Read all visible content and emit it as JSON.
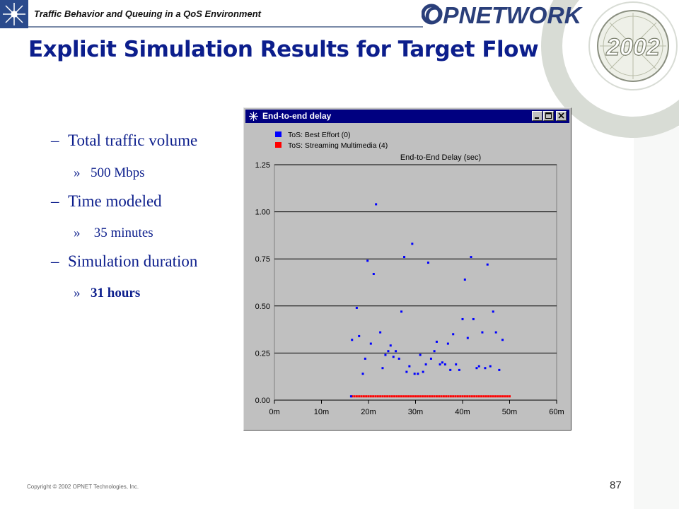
{
  "header": {
    "title": "Traffic Behavior and Queuing in a QoS Environment",
    "brand": "OPNETWORK",
    "badge_year": "2002"
  },
  "slide": {
    "title": "Explicit Simulation Results for Target Flow",
    "bullets": [
      {
        "marker": "–",
        "text": "Total traffic volume",
        "sub": {
          "marker": "»",
          "text": "500 Mbps"
        }
      },
      {
        "marker": "–",
        "text": "Time modeled",
        "sub": {
          "marker": "»",
          "text": " 35 minutes"
        }
      },
      {
        "marker": "–",
        "text": "Simulation duration",
        "sub": {
          "marker": "»",
          "text": "31 hours"
        }
      }
    ]
  },
  "window": {
    "title": "End-to-end delay",
    "buttons": [
      "minimize",
      "maximize",
      "close"
    ]
  },
  "colors": {
    "title_blue": "#0c1e8c",
    "best_effort": "#0000ff",
    "streaming": "#ff0000",
    "titlebar": "#000080"
  },
  "chart_data": {
    "type": "scatter",
    "title": "End-to-End Delay (sec)",
    "xlabel": "",
    "ylabel": "",
    "xlim": [
      0,
      60
    ],
    "ylim": [
      0,
      1.25
    ],
    "x_ticks": [
      "0m",
      "10m",
      "20m",
      "30m",
      "40m",
      "50m",
      "60m"
    ],
    "y_ticks": [
      "0.00",
      "0.25",
      "0.50",
      "0.75",
      "1.00",
      "1.25"
    ],
    "grid": "horizontal",
    "legend_position": "top-left",
    "series": [
      {
        "name": "ToS: Best Effort (0)",
        "color": "#0000ff",
        "points": [
          [
            16.3,
            0.02
          ],
          [
            16.5,
            0.32
          ],
          [
            17.5,
            0.49
          ],
          [
            18.0,
            0.34
          ],
          [
            18.8,
            0.14
          ],
          [
            19.3,
            0.22
          ],
          [
            19.8,
            0.74
          ],
          [
            20.5,
            0.3
          ],
          [
            21.1,
            0.67
          ],
          [
            21.6,
            1.04
          ],
          [
            22.5,
            0.36
          ],
          [
            23.0,
            0.17
          ],
          [
            23.6,
            0.24
          ],
          [
            24.2,
            0.26
          ],
          [
            24.7,
            0.29
          ],
          [
            25.3,
            0.23
          ],
          [
            25.8,
            0.26
          ],
          [
            26.5,
            0.22
          ],
          [
            27.0,
            0.47
          ],
          [
            27.6,
            0.76
          ],
          [
            28.1,
            0.15
          ],
          [
            28.7,
            0.18
          ],
          [
            29.3,
            0.83
          ],
          [
            29.8,
            0.14
          ],
          [
            30.5,
            0.14
          ],
          [
            31.0,
            0.24
          ],
          [
            31.6,
            0.15
          ],
          [
            32.2,
            0.19
          ],
          [
            32.7,
            0.73
          ],
          [
            33.3,
            0.22
          ],
          [
            34.0,
            0.26
          ],
          [
            34.5,
            0.31
          ],
          [
            35.2,
            0.19
          ],
          [
            35.7,
            0.2
          ],
          [
            36.3,
            0.19
          ],
          [
            36.9,
            0.3
          ],
          [
            37.4,
            0.16
          ],
          [
            38.0,
            0.35
          ],
          [
            38.6,
            0.19
          ],
          [
            39.3,
            0.16
          ],
          [
            40.0,
            0.43
          ],
          [
            40.5,
            0.64
          ],
          [
            41.1,
            0.33
          ],
          [
            41.8,
            0.76
          ],
          [
            42.3,
            0.43
          ],
          [
            43.0,
            0.17
          ],
          [
            43.5,
            0.18
          ],
          [
            44.2,
            0.36
          ],
          [
            44.8,
            0.17
          ],
          [
            45.3,
            0.72
          ],
          [
            45.9,
            0.18
          ],
          [
            46.5,
            0.47
          ],
          [
            47.1,
            0.36
          ],
          [
            47.8,
            0.16
          ],
          [
            48.5,
            0.32
          ]
        ]
      },
      {
        "name": "ToS: Streaming Multimedia (4)",
        "color": "#ff0000",
        "x_from": 16.5,
        "x_to": 50.0,
        "x_step": 0.5,
        "y": 0.02
      }
    ]
  },
  "footer": {
    "copyright": "Copyright © 2002 OPNET Technologies, Inc.",
    "page_number": "87"
  }
}
